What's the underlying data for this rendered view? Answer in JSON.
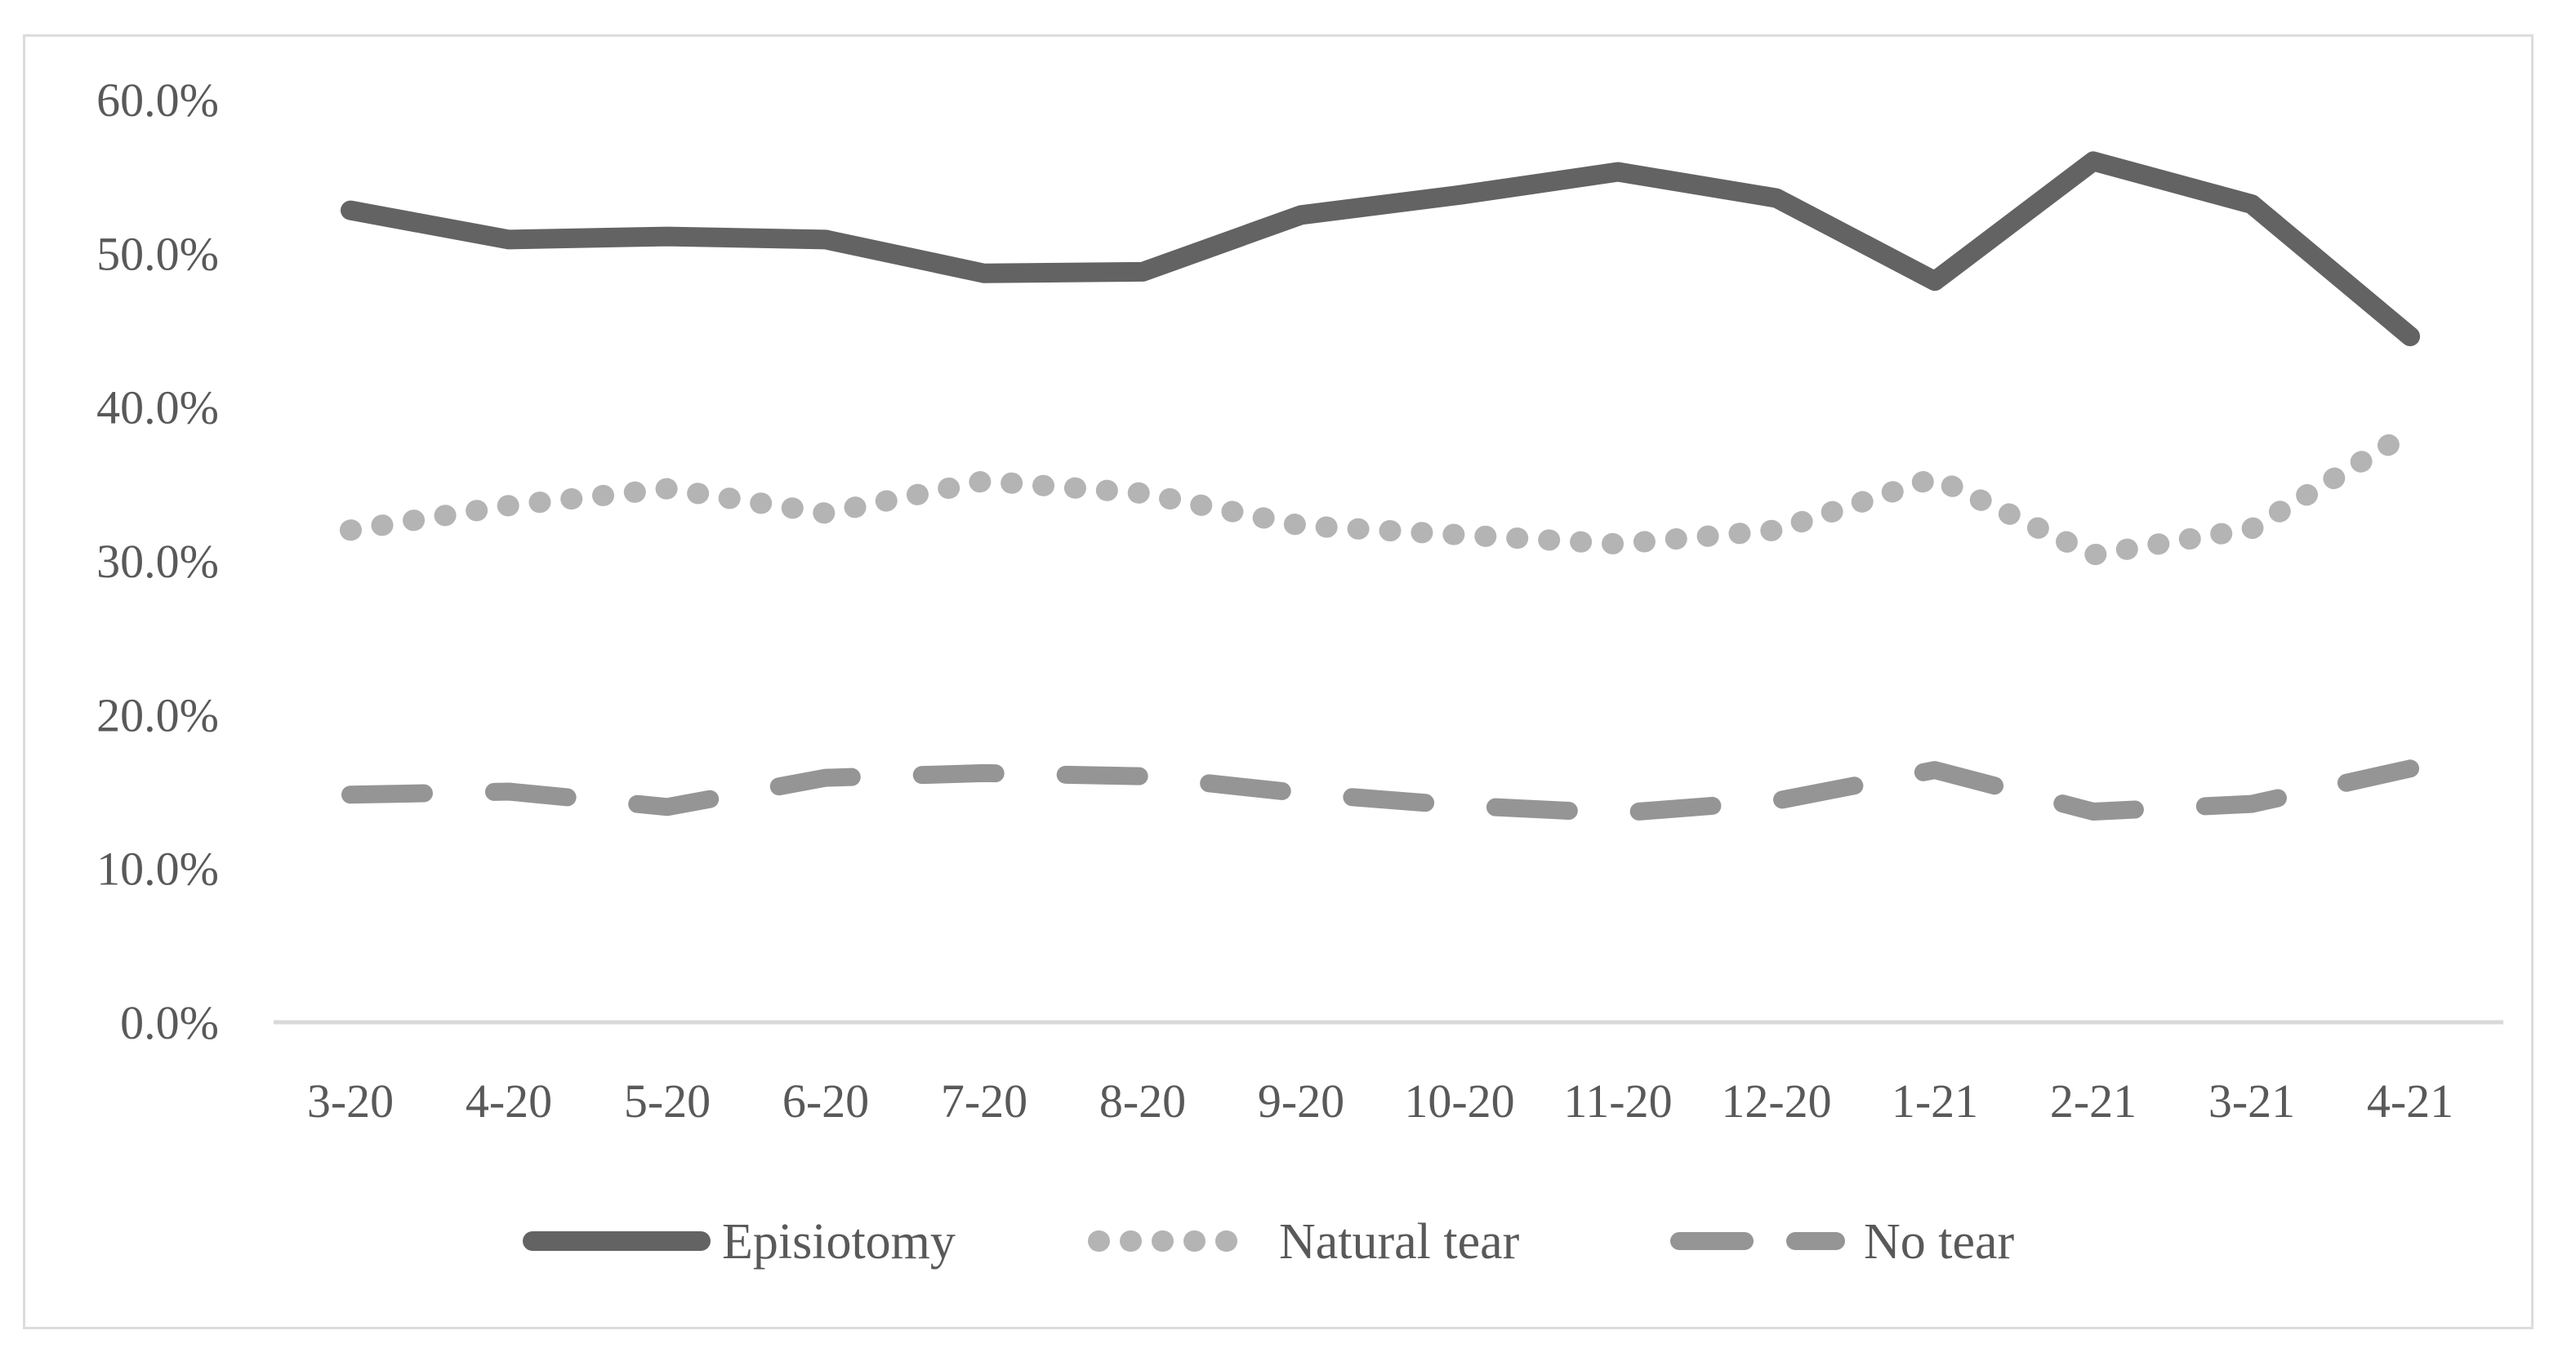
{
  "figure": {
    "background_color": "#ffffff",
    "frame_border_color": "#dcdcdc",
    "axis_line_color": "#d9d9d9",
    "label_color": "#595959"
  },
  "chart_data": {
    "type": "line",
    "categories": [
      "3-20",
      "4-20",
      "5-20",
      "6-20",
      "7-20",
      "8-20",
      "9-20",
      "10-20",
      "11-20",
      "12-20",
      "1-21",
      "2-21",
      "3-21",
      "4-21"
    ],
    "series": [
      {
        "name": "Episiotomy",
        "style": "solid",
        "color": "#636363",
        "values": [
          52.8,
          50.9,
          51.1,
          50.9,
          48.7,
          48.8,
          52.5,
          53.8,
          55.3,
          53.6,
          48.2,
          56.0,
          53.2,
          44.6
        ]
      },
      {
        "name": "Natural tear",
        "style": "dotted",
        "color": "#b4b4b4",
        "values": [
          32.0,
          33.6,
          34.7,
          33.1,
          35.2,
          34.4,
          32.3,
          31.7,
          31.1,
          32.0,
          35.4,
          30.4,
          32.1,
          38.4
        ]
      },
      {
        "name": "No tear",
        "style": "dashed",
        "color": "#959595",
        "values": [
          14.8,
          15.0,
          14.0,
          15.9,
          16.2,
          16.0,
          14.9,
          14.1,
          13.6,
          14.4,
          16.4,
          13.7,
          14.2,
          16.5
        ]
      }
    ],
    "ylim": [
      0,
      60
    ],
    "y_ticks": [
      {
        "value": 0,
        "label": "0.0%"
      },
      {
        "value": 10,
        "label": "10.0%"
      },
      {
        "value": 20,
        "label": "20.0%"
      },
      {
        "value": 30,
        "label": "30.0%"
      },
      {
        "value": 40,
        "label": "40.0%"
      },
      {
        "value": 50,
        "label": "50.0%"
      },
      {
        "value": 60,
        "label": "60.0%"
      }
    ],
    "grid": false,
    "legend_position": "bottom",
    "legend": [
      "Episiotomy",
      "Natural tear",
      "No tear"
    ]
  }
}
